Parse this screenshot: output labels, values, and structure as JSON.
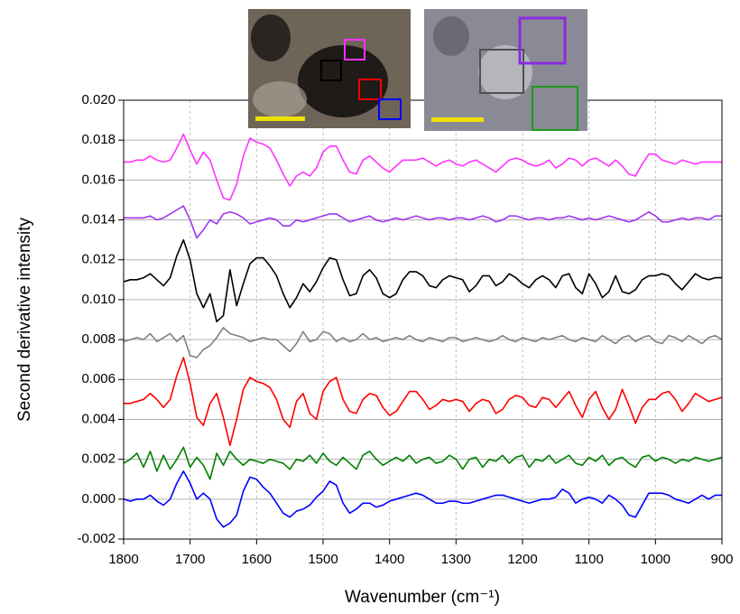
{
  "chart_data": {
    "type": "line",
    "x_label": "Wavenumber (cm⁻¹)",
    "y_label": "Second derivative intensity",
    "x": [
      1800,
      1790,
      1780,
      1770,
      1760,
      1750,
      1740,
      1730,
      1720,
      1710,
      1700,
      1690,
      1680,
      1670,
      1660,
      1650,
      1640,
      1630,
      1620,
      1610,
      1600,
      1590,
      1580,
      1570,
      1560,
      1550,
      1540,
      1530,
      1520,
      1510,
      1500,
      1490,
      1480,
      1470,
      1460,
      1450,
      1440,
      1430,
      1420,
      1410,
      1400,
      1390,
      1380,
      1370,
      1360,
      1350,
      1340,
      1330,
      1320,
      1310,
      1300,
      1290,
      1280,
      1270,
      1260,
      1250,
      1240,
      1230,
      1220,
      1210,
      1200,
      1190,
      1180,
      1170,
      1160,
      1150,
      1140,
      1130,
      1120,
      1110,
      1100,
      1090,
      1080,
      1070,
      1060,
      1050,
      1040,
      1030,
      1020,
      1010,
      1000,
      990,
      980,
      970,
      960,
      950,
      940,
      930,
      920,
      910,
      900
    ],
    "xlim": [
      1800,
      900
    ],
    "xticks": [
      1800,
      1700,
      1600,
      1500,
      1400,
      1300,
      1200,
      1100,
      1000,
      900
    ],
    "ylim": [
      -0.002,
      0.02
    ],
    "yticks": [
      {
        "value": -0.002,
        "label": "-0.002"
      },
      {
        "value": 0,
        "label": "0.000"
      },
      {
        "value": 0.002,
        "label": "0.002"
      },
      {
        "value": 0.004,
        "label": "0.004"
      },
      {
        "value": 0.006,
        "label": "0.006"
      },
      {
        "value": 0.008,
        "label": "0.008"
      },
      {
        "value": 0.01,
        "label": "0.010"
      },
      {
        "value": 0.012,
        "label": "0.012"
      },
      {
        "value": 0.014,
        "label": "0.014"
      },
      {
        "value": 0.016,
        "label": "0.016"
      },
      {
        "value": 0.018,
        "label": "0.018"
      },
      {
        "value": 0.02,
        "label": "0.020"
      }
    ],
    "grid": true,
    "series": [
      {
        "color": "#ff33ff",
        "values": [
          0.0169,
          0.0169,
          0.017,
          0.017,
          0.0172,
          0.017,
          0.0169,
          0.017,
          0.0176,
          0.0183,
          0.0175,
          0.0168,
          0.0174,
          0.017,
          0.016,
          0.0151,
          0.015,
          0.0158,
          0.0172,
          0.0181,
          0.0179,
          0.0178,
          0.0176,
          0.017,
          0.0163,
          0.0157,
          0.0162,
          0.0164,
          0.0162,
          0.0166,
          0.0174,
          0.0177,
          0.0177,
          0.017,
          0.0164,
          0.0163,
          0.017,
          0.0172,
          0.0169,
          0.0166,
          0.0164,
          0.0167,
          0.017,
          0.017,
          0.017,
          0.0171,
          0.0169,
          0.0167,
          0.0169,
          0.017,
          0.0168,
          0.0167,
          0.0169,
          0.017,
          0.0168,
          0.0166,
          0.0164,
          0.0167,
          0.017,
          0.0171,
          0.017,
          0.0168,
          0.0167,
          0.0168,
          0.017,
          0.0166,
          0.0168,
          0.0171,
          0.017,
          0.0167,
          0.017,
          0.0171,
          0.0169,
          0.0167,
          0.017,
          0.0167,
          0.0163,
          0.0162,
          0.0168,
          0.0173,
          0.0173,
          0.017,
          0.0169,
          0.0168,
          0.017,
          0.0169,
          0.0168,
          0.0169,
          0.0169,
          0.0169,
          0.0169
        ]
      },
      {
        "color": "#a035f0",
        "values": [
          0.0141,
          0.0141,
          0.0141,
          0.0141,
          0.0142,
          0.014,
          0.0141,
          0.0143,
          0.0145,
          0.0147,
          0.014,
          0.0131,
          0.0135,
          0.014,
          0.0138,
          0.0143,
          0.0144,
          0.0143,
          0.0141,
          0.0138,
          0.0139,
          0.014,
          0.0141,
          0.014,
          0.0137,
          0.0137,
          0.014,
          0.0139,
          0.014,
          0.0141,
          0.0142,
          0.0143,
          0.0143,
          0.0141,
          0.0139,
          0.014,
          0.0141,
          0.0142,
          0.014,
          0.0139,
          0.014,
          0.0141,
          0.014,
          0.0141,
          0.0142,
          0.0141,
          0.014,
          0.0141,
          0.0141,
          0.014,
          0.0141,
          0.0141,
          0.014,
          0.0141,
          0.0142,
          0.0141,
          0.0139,
          0.014,
          0.0142,
          0.0142,
          0.0141,
          0.014,
          0.0141,
          0.0141,
          0.014,
          0.0141,
          0.0141,
          0.0142,
          0.0141,
          0.014,
          0.0141,
          0.014,
          0.0141,
          0.0142,
          0.0141,
          0.014,
          0.0139,
          0.014,
          0.0142,
          0.0144,
          0.0142,
          0.0139,
          0.0139,
          0.014,
          0.0141,
          0.014,
          0.0141,
          0.0141,
          0.014,
          0.0142,
          0.0142
        ]
      },
      {
        "color": "#000000",
        "values": [
          0.0109,
          0.011,
          0.011,
          0.0111,
          0.0113,
          0.011,
          0.0107,
          0.0111,
          0.0122,
          0.013,
          0.012,
          0.0103,
          0.0096,
          0.0103,
          0.0089,
          0.0092,
          0.0115,
          0.0097,
          0.0108,
          0.0118,
          0.0121,
          0.0121,
          0.0117,
          0.0112,
          0.0103,
          0.0096,
          0.0101,
          0.0108,
          0.0104,
          0.0109,
          0.0116,
          0.0121,
          0.012,
          0.011,
          0.0102,
          0.0103,
          0.0112,
          0.0115,
          0.0111,
          0.0103,
          0.0101,
          0.0103,
          0.011,
          0.0114,
          0.0114,
          0.0112,
          0.0107,
          0.0106,
          0.011,
          0.0112,
          0.0111,
          0.011,
          0.0104,
          0.0107,
          0.0112,
          0.0112,
          0.0107,
          0.0109,
          0.0113,
          0.0111,
          0.0108,
          0.0106,
          0.011,
          0.0112,
          0.011,
          0.0106,
          0.0112,
          0.0113,
          0.0106,
          0.0103,
          0.0113,
          0.0108,
          0.0101,
          0.0104,
          0.0112,
          0.0104,
          0.0103,
          0.0105,
          0.011,
          0.0112,
          0.0112,
          0.0113,
          0.0112,
          0.0108,
          0.0105,
          0.0109,
          0.0113,
          0.0111,
          0.011,
          0.0111,
          0.0111
        ]
      },
      {
        "color": "#808080",
        "values": [
          0.0079,
          0.008,
          0.0081,
          0.008,
          0.0083,
          0.0079,
          0.0081,
          0.0083,
          0.0079,
          0.0082,
          0.0072,
          0.0071,
          0.0075,
          0.0077,
          0.0081,
          0.0086,
          0.0083,
          0.0082,
          0.0081,
          0.0079,
          0.008,
          0.0081,
          0.008,
          0.008,
          0.0077,
          0.0074,
          0.0078,
          0.0084,
          0.0079,
          0.008,
          0.0084,
          0.0083,
          0.0079,
          0.0081,
          0.0079,
          0.008,
          0.0083,
          0.008,
          0.0081,
          0.0079,
          0.008,
          0.0081,
          0.008,
          0.0082,
          0.008,
          0.0079,
          0.0081,
          0.008,
          0.0079,
          0.0081,
          0.0081,
          0.0079,
          0.008,
          0.0081,
          0.008,
          0.0079,
          0.008,
          0.0082,
          0.008,
          0.0079,
          0.0081,
          0.008,
          0.0079,
          0.0081,
          0.008,
          0.0081,
          0.0082,
          0.008,
          0.0079,
          0.0081,
          0.008,
          0.0079,
          0.0082,
          0.008,
          0.0078,
          0.0081,
          0.0082,
          0.0079,
          0.0081,
          0.0082,
          0.0079,
          0.0078,
          0.0082,
          0.0081,
          0.0079,
          0.0082,
          0.008,
          0.0078,
          0.0081,
          0.0082,
          0.008
        ]
      },
      {
        "color": "#ff0000",
        "values": [
          0.0048,
          0.0048,
          0.0049,
          0.005,
          0.0053,
          0.005,
          0.0046,
          0.005,
          0.0062,
          0.0071,
          0.0058,
          0.0041,
          0.0037,
          0.0048,
          0.0053,
          0.0041,
          0.0027,
          0.004,
          0.0055,
          0.0061,
          0.0059,
          0.0058,
          0.0056,
          0.005,
          0.004,
          0.0036,
          0.0049,
          0.0053,
          0.0043,
          0.004,
          0.0054,
          0.0059,
          0.0061,
          0.005,
          0.0044,
          0.0043,
          0.005,
          0.0053,
          0.0052,
          0.0046,
          0.0042,
          0.0044,
          0.0049,
          0.0054,
          0.0054,
          0.005,
          0.0045,
          0.0047,
          0.005,
          0.0049,
          0.005,
          0.0049,
          0.0044,
          0.0048,
          0.005,
          0.0049,
          0.0043,
          0.0045,
          0.005,
          0.0052,
          0.0051,
          0.0047,
          0.0046,
          0.0051,
          0.005,
          0.0046,
          0.005,
          0.0054,
          0.0047,
          0.0041,
          0.005,
          0.0054,
          0.0046,
          0.004,
          0.0045,
          0.0055,
          0.0047,
          0.0038,
          0.0046,
          0.005,
          0.005,
          0.0053,
          0.0054,
          0.005,
          0.0044,
          0.0048,
          0.0053,
          0.0051,
          0.0049,
          0.005,
          0.0051
        ]
      },
      {
        "color": "#008000",
        "values": [
          0.0018,
          0.002,
          0.0023,
          0.0016,
          0.0024,
          0.0014,
          0.0022,
          0.0015,
          0.002,
          0.0026,
          0.0016,
          0.0021,
          0.0017,
          0.001,
          0.0023,
          0.0017,
          0.0024,
          0.002,
          0.0017,
          0.002,
          0.0019,
          0.0018,
          0.002,
          0.0019,
          0.0018,
          0.0015,
          0.002,
          0.0019,
          0.0022,
          0.0018,
          0.0023,
          0.0019,
          0.0017,
          0.0021,
          0.0018,
          0.0015,
          0.0022,
          0.0024,
          0.002,
          0.0017,
          0.0019,
          0.0021,
          0.0019,
          0.0022,
          0.0018,
          0.002,
          0.0021,
          0.0018,
          0.0019,
          0.0022,
          0.002,
          0.0015,
          0.002,
          0.0021,
          0.0016,
          0.002,
          0.0019,
          0.0022,
          0.0018,
          0.0021,
          0.0022,
          0.0016,
          0.002,
          0.0019,
          0.0022,
          0.0018,
          0.002,
          0.0022,
          0.0018,
          0.0017,
          0.0021,
          0.0019,
          0.0022,
          0.0017,
          0.002,
          0.0021,
          0.0018,
          0.0016,
          0.0021,
          0.0022,
          0.0019,
          0.0021,
          0.002,
          0.0018,
          0.002,
          0.0019,
          0.0021,
          0.002,
          0.0019,
          0.002,
          0.0021
        ]
      },
      {
        "color": "#0000ff",
        "values": [
          0,
          -0.0001,
          0,
          0,
          0.0002,
          -0.0001,
          -0.0003,
          0,
          0.0008,
          0.0014,
          0.0008,
          0,
          0.0003,
          0,
          -0.001,
          -0.0014,
          -0.0012,
          -0.0008,
          0.0004,
          0.0011,
          0.001,
          0.0006,
          0.0003,
          -0.0002,
          -0.0007,
          -0.0009,
          -0.0006,
          -0.0005,
          -0.0003,
          0.0001,
          0.0004,
          0.0009,
          0.0007,
          -0.0002,
          -0.0007,
          -0.0005,
          -0.0002,
          -0.0002,
          -0.0004,
          -0.0003,
          -0.0001,
          0,
          0.0001,
          0.0002,
          0.0003,
          0.0002,
          0,
          -0.0002,
          -0.0002,
          -0.0001,
          -0.0001,
          -0.0002,
          -0.0002,
          -0.0001,
          0,
          0.0001,
          0.0002,
          0.0002,
          0.0001,
          0,
          -0.0001,
          -0.0002,
          -0.0001,
          0,
          0,
          0.0001,
          0.0005,
          0.0003,
          -0.0002,
          0,
          0.0001,
          0,
          -0.0002,
          0.0002,
          0,
          -0.0003,
          -0.0008,
          -0.0009,
          -0.0003,
          0.0003,
          0.0003,
          0.0003,
          0.0002,
          0,
          -0.0001,
          -0.0002,
          0,
          0.0002,
          0,
          0.0002,
          0.0002
        ]
      }
    ]
  }
}
